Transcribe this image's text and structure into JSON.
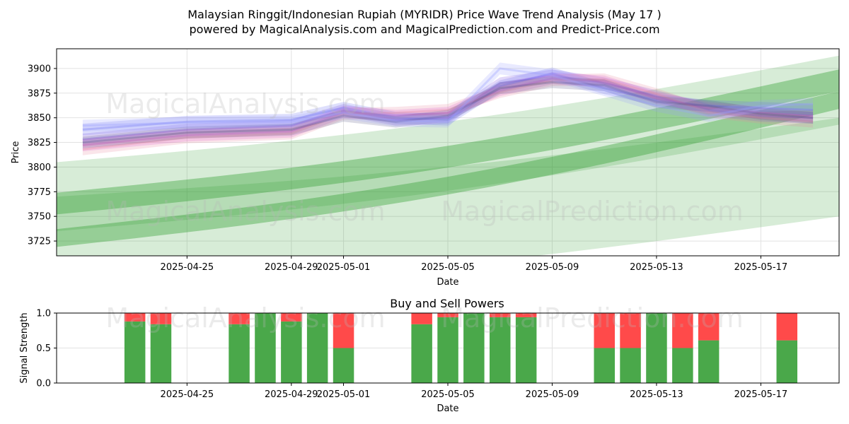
{
  "title_line1": "Malaysian Ringgit/Indonesian Rupiah (MYRIDR) Price Wave Trend Analysis (May 17 )",
  "title_line2": "powered by MagicalAnalysis.com and MagicalPrediction.com and Predict-Price.com",
  "watermarks": [
    "MagicalAnalysis.com",
    "MagicalPrediction.com"
  ],
  "colors": {
    "buy": "#4aa84a",
    "sell": "#ff4a4a",
    "band": "#2e9e2e",
    "grid": "#e2e2e2"
  },
  "chart_data": [
    {
      "type": "area",
      "title": "",
      "xlabel": "Date",
      "ylabel": "Price",
      "xlim": [
        "2025-04-20",
        "2025-05-20"
      ],
      "ylim": [
        3710,
        3920
      ],
      "yticks": [
        3725,
        3750,
        3775,
        3800,
        3825,
        3850,
        3875,
        3900
      ],
      "xticks": [
        "2025-04-25",
        "2025-04-29",
        "2025-05-01",
        "2025-05-05",
        "2025-05-09",
        "2025-05-13",
        "2025-05-17"
      ],
      "grid": true,
      "x": [
        "2025-04-21",
        "2025-04-25",
        "2025-04-29",
        "2025-05-01",
        "2025-05-03",
        "2025-05-05",
        "2025-05-07",
        "2025-05-09",
        "2025-05-11",
        "2025-05-13",
        "2025-05-15",
        "2025-05-17",
        "2025-05-19"
      ],
      "price_waves": [
        {
          "name": "",
          "color": "#7b4fe0",
          "values": [
            3828,
            3838,
            3842,
            3858,
            3848,
            3850,
            3885,
            3893,
            3885,
            3872,
            3858,
            3852,
            3850
          ]
        },
        {
          "name": "",
          "color": "#d94fd0",
          "values": [
            3822,
            3832,
            3836,
            3856,
            3852,
            3855,
            3878,
            3890,
            3887,
            3870,
            3860,
            3855,
            3852
          ]
        },
        {
          "name": "",
          "color": "#6a6ff0",
          "values": [
            3838,
            3846,
            3848,
            3860,
            3850,
            3848,
            3882,
            3895,
            3880,
            3868,
            3862,
            3860,
            3858
          ]
        },
        {
          "name": "",
          "color": "#e68aa0",
          "values": [
            3818,
            3830,
            3834,
            3854,
            3855,
            3858,
            3876,
            3888,
            3889,
            3874,
            3856,
            3850,
            3846
          ]
        },
        {
          "name": "",
          "color": "#5a5a8a",
          "values": [
            3825,
            3835,
            3838,
            3852,
            3846,
            3852,
            3880,
            3886,
            3883,
            3866,
            3862,
            3854,
            3850
          ]
        },
        {
          "name": "",
          "color": "#9aa0ff",
          "values": [
            3842,
            3845,
            3846,
            3855,
            3847,
            3846,
            3900,
            3893,
            3878,
            3862,
            3852,
            3862,
            3864
          ]
        }
      ],
      "trend_bands": [
        {
          "start": 3763,
          "end": 3888,
          "width": 22,
          "opacity": 0.7
        },
        {
          "start": 3728,
          "end": 3868,
          "width": 18,
          "opacity": 0.7
        },
        {
          "start": 3770,
          "end": 3878,
          "width": 70,
          "opacity": 0.35
        },
        {
          "start": 3720,
          "end": 3800,
          "width": 100,
          "opacity": 0.35
        }
      ]
    },
    {
      "type": "bar",
      "title": "Buy and Sell Powers",
      "xlabel": "Date",
      "ylabel": "Signal Strength",
      "ylim": [
        0,
        1
      ],
      "yticks": [
        0.0,
        0.5,
        1.0
      ],
      "xticks": [
        "2025-04-25",
        "2025-04-29",
        "2025-05-01",
        "2025-05-05",
        "2025-05-09",
        "2025-05-13",
        "2025-05-17"
      ],
      "series": [
        {
          "name": "",
          "color": "#4aa84a",
          "x": [
            "2025-04-23",
            "2025-04-24",
            "2025-04-27",
            "2025-04-28",
            "2025-04-29",
            "2025-04-30",
            "2025-05-01",
            "2025-05-04",
            "2025-05-05",
            "2025-05-06",
            "2025-05-07",
            "2025-05-08",
            "2025-05-11",
            "2025-05-12",
            "2025-05-13",
            "2025-05-14",
            "2025-05-15",
            "2025-05-18"
          ],
          "values": [
            0.88,
            0.84,
            0.84,
            1.0,
            0.88,
            1.0,
            0.5,
            0.84,
            0.94,
            1.0,
            0.94,
            0.94,
            0.5,
            0.5,
            1.0,
            0.5,
            0.61,
            0.61
          ]
        },
        {
          "name": "",
          "color": "#ff4a4a",
          "x": [
            "2025-04-23",
            "2025-04-24",
            "2025-04-27",
            "2025-04-28",
            "2025-04-29",
            "2025-04-30",
            "2025-05-01",
            "2025-05-04",
            "2025-05-05",
            "2025-05-06",
            "2025-05-07",
            "2025-05-08",
            "2025-05-11",
            "2025-05-12",
            "2025-05-13",
            "2025-05-14",
            "2025-05-15",
            "2025-05-18"
          ],
          "values": [
            0.12,
            0.16,
            0.16,
            0.0,
            0.12,
            0.0,
            0.5,
            0.16,
            0.06,
            0.0,
            0.06,
            0.06,
            0.5,
            0.5,
            0.0,
            0.5,
            0.39,
            0.39
          ]
        }
      ]
    }
  ]
}
